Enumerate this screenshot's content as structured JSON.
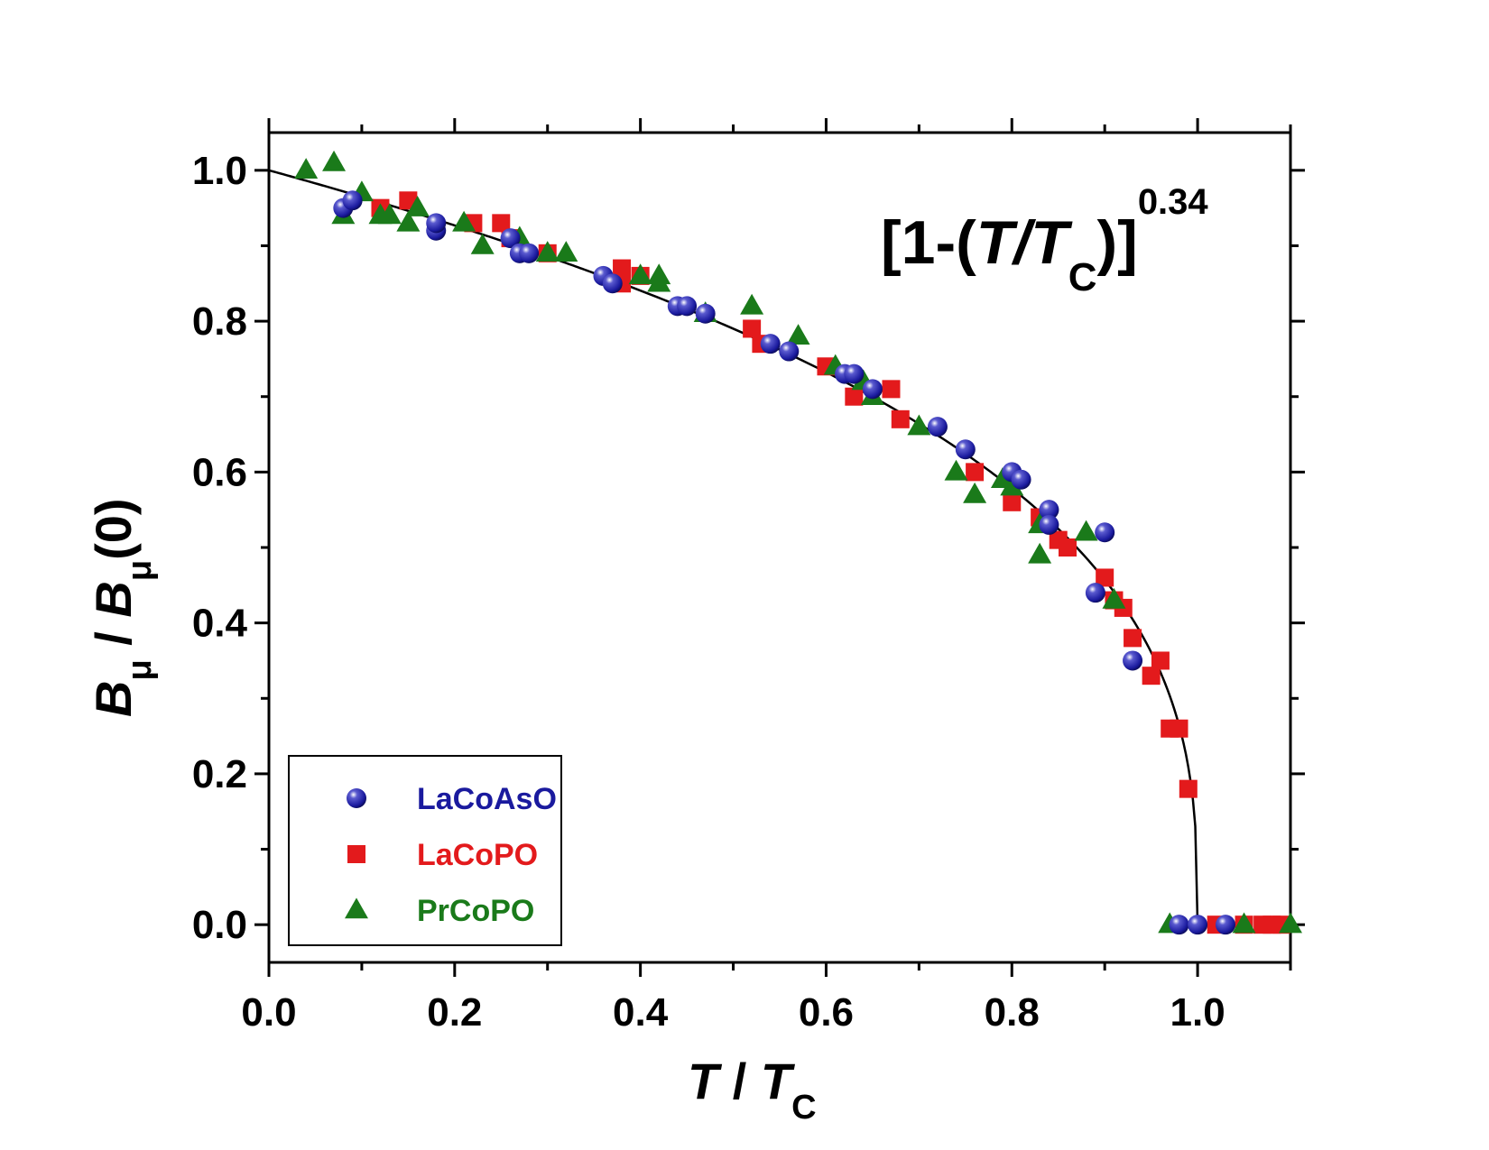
{
  "chart_data": {
    "type": "scatter",
    "xlabel": {
      "italic": "T",
      "sep": " / ",
      "italic2": "T",
      "sub": "C"
    },
    "ylabel": {
      "italic": "B",
      "sub": "μ",
      "sep": " / ",
      "italic2": "B",
      "sub2": "μ",
      "tail": "(0)"
    },
    "annotation": {
      "open": "[1-(",
      "italic": "T/T",
      "sub": "C",
      "close": ")]",
      "exponent": "0.34"
    },
    "xlim": [
      0.0,
      1.1
    ],
    "ylim": [
      -0.05,
      1.05
    ],
    "xticks": [
      "0.0",
      "0.2",
      "0.4",
      "0.6",
      "0.8",
      "1.0"
    ],
    "yticks": [
      "0.0",
      "0.2",
      "0.4",
      "0.6",
      "0.8",
      "1.0"
    ],
    "fit": {
      "label": "[1-(T/Tc)]^0.34",
      "exponent": 0.34,
      "color": "#000000"
    },
    "series": [
      {
        "name": "LaCoAsO",
        "marker": "circle",
        "color": "#1a1a9e",
        "points": [
          [
            0.08,
            0.95
          ],
          [
            0.09,
            0.96
          ],
          [
            0.18,
            0.92
          ],
          [
            0.18,
            0.93
          ],
          [
            0.26,
            0.91
          ],
          [
            0.27,
            0.89
          ],
          [
            0.28,
            0.89
          ],
          [
            0.36,
            0.86
          ],
          [
            0.37,
            0.85
          ],
          [
            0.44,
            0.82
          ],
          [
            0.45,
            0.82
          ],
          [
            0.47,
            0.81
          ],
          [
            0.54,
            0.77
          ],
          [
            0.56,
            0.76
          ],
          [
            0.62,
            0.73
          ],
          [
            0.63,
            0.73
          ],
          [
            0.65,
            0.71
          ],
          [
            0.72,
            0.66
          ],
          [
            0.75,
            0.63
          ],
          [
            0.8,
            0.6
          ],
          [
            0.81,
            0.59
          ],
          [
            0.84,
            0.55
          ],
          [
            0.84,
            0.53
          ],
          [
            0.89,
            0.44
          ],
          [
            0.9,
            0.52
          ],
          [
            0.93,
            0.35
          ],
          [
            0.98,
            0.0
          ],
          [
            1.0,
            0.0
          ],
          [
            1.03,
            0.0
          ]
        ]
      },
      {
        "name": "LaCoPO",
        "marker": "square",
        "color": "#e31a1c",
        "points": [
          [
            0.12,
            0.95
          ],
          [
            0.15,
            0.96
          ],
          [
            0.22,
            0.93
          ],
          [
            0.25,
            0.93
          ],
          [
            0.26,
            0.91
          ],
          [
            0.3,
            0.89
          ],
          [
            0.38,
            0.87
          ],
          [
            0.38,
            0.85
          ],
          [
            0.4,
            0.86
          ],
          [
            0.52,
            0.79
          ],
          [
            0.53,
            0.77
          ],
          [
            0.6,
            0.74
          ],
          [
            0.63,
            0.7
          ],
          [
            0.67,
            0.71
          ],
          [
            0.68,
            0.67
          ],
          [
            0.76,
            0.6
          ],
          [
            0.8,
            0.56
          ],
          [
            0.83,
            0.54
          ],
          [
            0.85,
            0.51
          ],
          [
            0.86,
            0.5
          ],
          [
            0.9,
            0.46
          ],
          [
            0.91,
            0.43
          ],
          [
            0.92,
            0.42
          ],
          [
            0.93,
            0.38
          ],
          [
            0.95,
            0.33
          ],
          [
            0.96,
            0.35
          ],
          [
            0.97,
            0.26
          ],
          [
            0.98,
            0.26
          ],
          [
            0.99,
            0.18
          ],
          [
            1.02,
            0.0
          ],
          [
            1.05,
            0.0
          ],
          [
            1.07,
            0.0
          ],
          [
            1.08,
            0.0
          ],
          [
            1.09,
            0.0
          ]
        ]
      },
      {
        "name": "PrCoPO",
        "marker": "triangle",
        "color": "#1a7a1a",
        "points": [
          [
            0.04,
            1.0
          ],
          [
            0.07,
            1.01
          ],
          [
            0.08,
            0.94
          ],
          [
            0.1,
            0.97
          ],
          [
            0.12,
            0.94
          ],
          [
            0.13,
            0.94
          ],
          [
            0.15,
            0.93
          ],
          [
            0.16,
            0.95
          ],
          [
            0.21,
            0.93
          ],
          [
            0.23,
            0.9
          ],
          [
            0.27,
            0.91
          ],
          [
            0.3,
            0.89
          ],
          [
            0.32,
            0.89
          ],
          [
            0.4,
            0.86
          ],
          [
            0.42,
            0.86
          ],
          [
            0.42,
            0.85
          ],
          [
            0.47,
            0.81
          ],
          [
            0.52,
            0.82
          ],
          [
            0.57,
            0.78
          ],
          [
            0.61,
            0.74
          ],
          [
            0.64,
            0.72
          ],
          [
            0.65,
            0.7
          ],
          [
            0.7,
            0.66
          ],
          [
            0.74,
            0.6
          ],
          [
            0.76,
            0.57
          ],
          [
            0.79,
            0.59
          ],
          [
            0.8,
            0.58
          ],
          [
            0.83,
            0.53
          ],
          [
            0.83,
            0.49
          ],
          [
            0.88,
            0.52
          ],
          [
            0.91,
            0.43
          ],
          [
            0.97,
            0.0
          ],
          [
            1.05,
            0.0
          ],
          [
            1.1,
            0.0
          ]
        ]
      }
    ]
  }
}
